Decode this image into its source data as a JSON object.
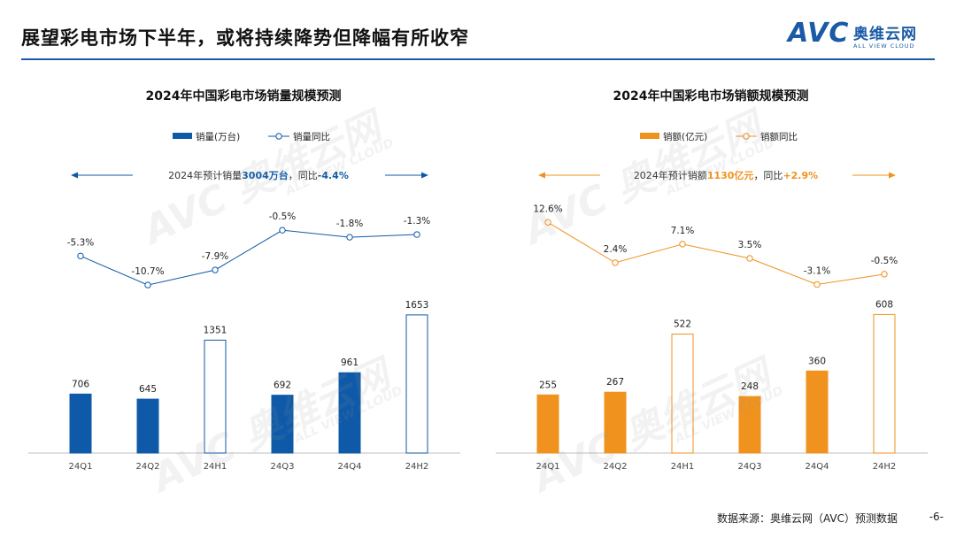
{
  "header": {
    "title": "展望彩电市场下半年，或将持续降势但降幅有所收窄"
  },
  "logo": {
    "mark": "AVC",
    "name_cn": "奥维云网",
    "name_en": "ALL VIEW CLOUD"
  },
  "watermark": {
    "text": "AVC 奥维云网",
    "subtext": "ALL VIEW CLOUD"
  },
  "footer": {
    "source": "数据来源：奥维云网（AVC）预测数据",
    "page": "-6-"
  },
  "chart_data": [
    {
      "type": "bar",
      "title": "2024年中国彩电市场销量规模预测",
      "categories": [
        "24Q1",
        "24Q2",
        "24H1",
        "24Q3",
        "24Q4",
        "24H2"
      ],
      "series": [
        {
          "name": "销量(万台)",
          "kind": "bar",
          "values": [
            706,
            645,
            1351,
            692,
            961,
            1653
          ],
          "labels": [
            "706",
            "645",
            "1351",
            "692",
            "961",
            "1653"
          ],
          "hollow": [
            false,
            false,
            true,
            false,
            false,
            true
          ]
        },
        {
          "name": "销量同比",
          "kind": "line",
          "values": [
            -5.3,
            -10.7,
            -7.9,
            -0.5,
            -1.8,
            -1.3
          ],
          "labels": [
            "-5.3%",
            "-10.7%",
            "-7.9%",
            "-0.5%",
            "-1.8%",
            "-1.3%"
          ]
        }
      ],
      "annotation": {
        "prefix": "2024年预计销量",
        "value": "3004万台",
        "mid": "，同比",
        "change": "-4.4%"
      },
      "color": "#0f5aa8",
      "bar_ylim": [
        0,
        1800
      ],
      "line_ylim": [
        -12,
        2
      ],
      "legend_position": "top-center"
    },
    {
      "type": "bar",
      "title": "2024年中国彩电市场销额规模预测",
      "categories": [
        "24Q1",
        "24Q2",
        "24H1",
        "24Q3",
        "24Q4",
        "24H2"
      ],
      "series": [
        {
          "name": "销额(亿元)",
          "kind": "bar",
          "values": [
            255,
            267,
            522,
            248,
            360,
            608
          ],
          "labels": [
            "255",
            "267",
            "522",
            "248",
            "360",
            "608"
          ],
          "hollow": [
            false,
            false,
            true,
            false,
            false,
            true
          ]
        },
        {
          "name": "销额同比",
          "kind": "line",
          "values": [
            12.6,
            2.4,
            7.1,
            3.5,
            -3.1,
            -0.5
          ],
          "labels": [
            "12.6%",
            "2.4%",
            "7.1%",
            "3.5%",
            "-3.1%",
            "-0.5%"
          ]
        }
      ],
      "annotation": {
        "prefix": "2024年预计销额",
        "value": "1130亿元",
        "mid": "，同比",
        "change": "+2.9%"
      },
      "color": "#f0921e",
      "bar_ylim": [
        0,
        660
      ],
      "line_ylim": [
        -5,
        14
      ],
      "legend_position": "top-center"
    }
  ]
}
